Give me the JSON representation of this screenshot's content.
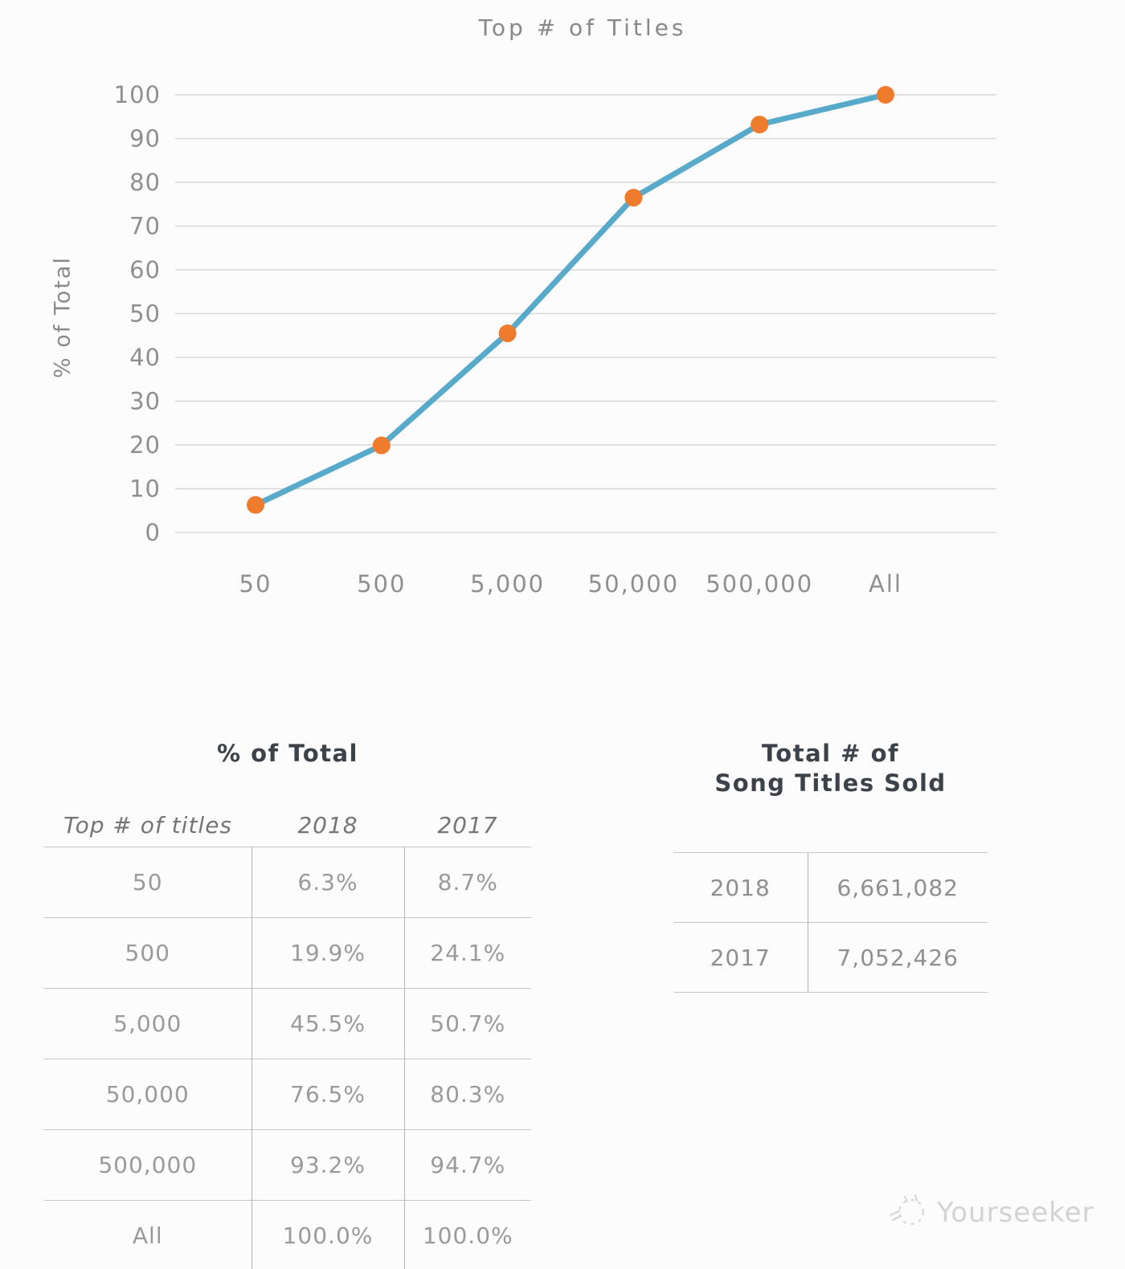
{
  "chart_data": {
    "type": "line",
    "title": "Top # of Titles",
    "xlabel": "",
    "ylabel": "% of Total",
    "categories": [
      "50",
      "500",
      "5,000",
      "50,000",
      "500,000",
      "All"
    ],
    "series": [
      {
        "name": "2018",
        "values": [
          6.3,
          19.9,
          45.5,
          76.5,
          93.2,
          100.0
        ]
      }
    ],
    "ylim": [
      0,
      100
    ],
    "yticks": [
      0,
      10,
      20,
      30,
      40,
      50,
      60,
      70,
      80,
      90,
      100
    ],
    "grid": true,
    "legend": "none",
    "line_color": "#57AACA",
    "marker_color": "#EF7B2D",
    "grid_color": "#D8D8D8",
    "tick_color": "#8F8F8F"
  },
  "tables": {
    "percent": {
      "title": "% of Total",
      "columns": [
        "Top # of titles",
        "2018",
        "2017"
      ],
      "rows": [
        [
          "50",
          "6.3%",
          "8.7%"
        ],
        [
          "500",
          "19.9%",
          "24.1%"
        ],
        [
          "5,000",
          "45.5%",
          "50.7%"
        ],
        [
          "50,000",
          "76.5%",
          "80.3%"
        ],
        [
          "500,000",
          "93.2%",
          "94.7%"
        ],
        [
          "All",
          "100.0%",
          "100.0%"
        ]
      ]
    },
    "totals": {
      "title_line1": "Total # of",
      "title_line2": "Song Titles Sold",
      "rows": [
        [
          "2018",
          "6,661,082"
        ],
        [
          "2017",
          "7,052,426"
        ]
      ]
    }
  },
  "watermark": {
    "text": "Yourseeker"
  }
}
